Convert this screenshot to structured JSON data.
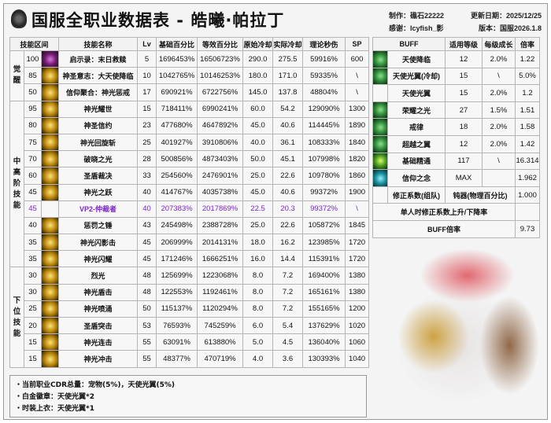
{
  "header": {
    "title": "国服全职业数据表 - 皓曦·帕拉丁",
    "author": "制作：礁石22222",
    "thanks": "感谢：Icyfish_影",
    "updated": "更新日期：2025/12/25",
    "version": "版本：国服2026.1.8"
  },
  "skill_table": {
    "columns": [
      "技能区间",
      "技能名称",
      "Lv",
      "基础百分比",
      "等效百分比",
      "原始冷却",
      "实际冷却",
      "理论秒伤",
      "SP"
    ],
    "groups": [
      {
        "label": "觉醒",
        "rows": [
          {
            "level": "100",
            "name": "启示录：末日救赎",
            "lv": "5",
            "base": "1696453%",
            "eq": "16506723%",
            "cd": "290.0",
            "acd": "275.5",
            "dps": "59916%",
            "sp": "600",
            "icon": "purple"
          },
          {
            "level": "85",
            "name": "神圣意志：大天使降临",
            "lv": "10",
            "base": "1042765%",
            "eq": "10146253%",
            "cd": "180.0",
            "acd": "171.0",
            "dps": "59335%",
            "sp": "\\",
            "icon": "gold"
          },
          {
            "level": "50",
            "name": "信仰聚合：神光惩戒",
            "lv": "17",
            "base": "690921%",
            "eq": "6722756%",
            "cd": "145.0",
            "acd": "137.8",
            "dps": "48804%",
            "sp": "\\",
            "icon": "gold"
          }
        ]
      },
      {
        "label": "中高阶技能",
        "rows": [
          {
            "level": "95",
            "name": "神光耀世",
            "lv": "15",
            "base": "718411%",
            "eq": "6990241%",
            "cd": "60.0",
            "acd": "54.2",
            "dps": "129090%",
            "sp": "1300",
            "icon": "gold"
          },
          {
            "level": "80",
            "name": "神圣信约",
            "lv": "23",
            "base": "477680%",
            "eq": "4647892%",
            "cd": "45.0",
            "acd": "40.6",
            "dps": "114445%",
            "sp": "1890",
            "icon": "gold"
          },
          {
            "level": "75",
            "name": "神光回旋斩",
            "lv": "25",
            "base": "401927%",
            "eq": "3910806%",
            "cd": "40.0",
            "acd": "36.1",
            "dps": "108333%",
            "sp": "1840",
            "icon": "gold"
          },
          {
            "level": "70",
            "name": "破晓之光",
            "lv": "28",
            "base": "500856%",
            "eq": "4873403%",
            "cd": "50.0",
            "acd": "45.1",
            "dps": "107998%",
            "sp": "1820",
            "icon": "gold"
          },
          {
            "level": "60",
            "name": "圣盾裁决",
            "lv": "33",
            "base": "254560%",
            "eq": "2476901%",
            "cd": "25.0",
            "acd": "22.6",
            "dps": "109780%",
            "sp": "1860",
            "icon": "gold"
          },
          {
            "level": "45",
            "name": "神光之跃",
            "lv": "40",
            "base": "414767%",
            "eq": "4035738%",
            "cd": "45.0",
            "acd": "40.6",
            "dps": "99372%",
            "sp": "1900",
            "icon": "gold"
          },
          {
            "level": "45",
            "name": "VP2-仲裁者",
            "lv": "40",
            "base": "207383%",
            "eq": "2017869%",
            "cd": "22.5",
            "acd": "20.3",
            "dps": "99372%",
            "sp": "\\",
            "icon": "none",
            "highlight": true
          },
          {
            "level": "40",
            "name": "惩罚之锤",
            "lv": "43",
            "base": "245498%",
            "eq": "2388728%",
            "cd": "25.0",
            "acd": "22.6",
            "dps": "105872%",
            "sp": "1845",
            "icon": "gold"
          },
          {
            "level": "35",
            "name": "神光闪影击",
            "lv": "45",
            "base": "206999%",
            "eq": "2014131%",
            "cd": "18.0",
            "acd": "16.2",
            "dps": "123985%",
            "sp": "1720",
            "icon": "gold"
          },
          {
            "level": "35",
            "name": "神光闪耀",
            "lv": "45",
            "base": "171246%",
            "eq": "1666251%",
            "cd": "16.0",
            "acd": "14.4",
            "dps": "115391%",
            "sp": "1720",
            "icon": "gold"
          }
        ]
      },
      {
        "label": "下位技能",
        "rows": [
          {
            "level": "30",
            "name": "烈光",
            "lv": "48",
            "base": "125699%",
            "eq": "1223068%",
            "cd": "8.0",
            "acd": "7.2",
            "dps": "169400%",
            "sp": "1380",
            "icon": "gold"
          },
          {
            "level": "30",
            "name": "神光盾击",
            "lv": "48",
            "base": "122553%",
            "eq": "1192461%",
            "cd": "8.0",
            "acd": "7.2",
            "dps": "165161%",
            "sp": "1380",
            "icon": "gold"
          },
          {
            "level": "25",
            "name": "神光喷涌",
            "lv": "50",
            "base": "115137%",
            "eq": "1120294%",
            "cd": "8.0",
            "acd": "7.2",
            "dps": "155165%",
            "sp": "1200",
            "icon": "gold"
          },
          {
            "level": "20",
            "name": "圣盾突击",
            "lv": "53",
            "base": "76593%",
            "eq": "745259%",
            "cd": "6.0",
            "acd": "5.4",
            "dps": "137629%",
            "sp": "1020",
            "icon": "gold"
          },
          {
            "level": "15",
            "name": "神光连击",
            "lv": "55",
            "base": "63091%",
            "eq": "613880%",
            "cd": "5.0",
            "acd": "4.5",
            "dps": "136040%",
            "sp": "1060",
            "icon": "gold"
          },
          {
            "level": "15",
            "name": "神光冲击",
            "lv": "55",
            "base": "48377%",
            "eq": "470719%",
            "cd": "4.0",
            "acd": "3.6",
            "dps": "130393%",
            "sp": "1040",
            "icon": "gold"
          }
        ]
      }
    ]
  },
  "buff_table": {
    "columns": [
      "BUFF",
      "适用等级",
      "每级成长",
      "倍率"
    ],
    "rows": [
      {
        "name": "天使降临",
        "level": "12",
        "growth": "2.0%",
        "rate": "1.22",
        "icon": "green"
      },
      {
        "name": "天使光翼(冷却)",
        "level": "15",
        "growth": "\\",
        "rate": "5.0%",
        "icon": "green"
      },
      {
        "name": "天使光翼",
        "level": "15",
        "growth": "2.0%",
        "rate": "1.2",
        "icon": "none"
      },
      {
        "name": "荣耀之光",
        "level": "27",
        "growth": "1.5%",
        "rate": "1.51",
        "icon": "green"
      },
      {
        "name": "戒律",
        "level": "18",
        "growth": "2.0%",
        "rate": "1.58",
        "icon": "green"
      },
      {
        "name": "超越之翼",
        "level": "12",
        "growth": "2.0%",
        "rate": "1.42",
        "icon": "green"
      },
      {
        "name": "基础精通",
        "level": "117",
        "growth": "\\",
        "rate": "16.314",
        "icon": "lime"
      },
      {
        "name": "信仰之念",
        "level": "MAX",
        "growth": "",
        "rate": "1.962",
        "icon": "teal"
      }
    ],
    "correction": {
      "label": "修正系数(组队)",
      "type": "钝器(物理百分比)",
      "value": "1.000"
    },
    "solo_label": "单人时修正系数上升/下降率",
    "total": {
      "label": "BUFF倍率",
      "value": "9.73"
    }
  },
  "notes": [
    "・当前职业CDR总量：宠物(5%)，天使光翼(5%)",
    "・白金徽章：天使光翼*2",
    "・时装上衣：天使光翼*1"
  ],
  "colors": {
    "highlight": "#7a26c9",
    "gold_icon": "#c99a1a",
    "green_icon": "#2f8a3a"
  }
}
